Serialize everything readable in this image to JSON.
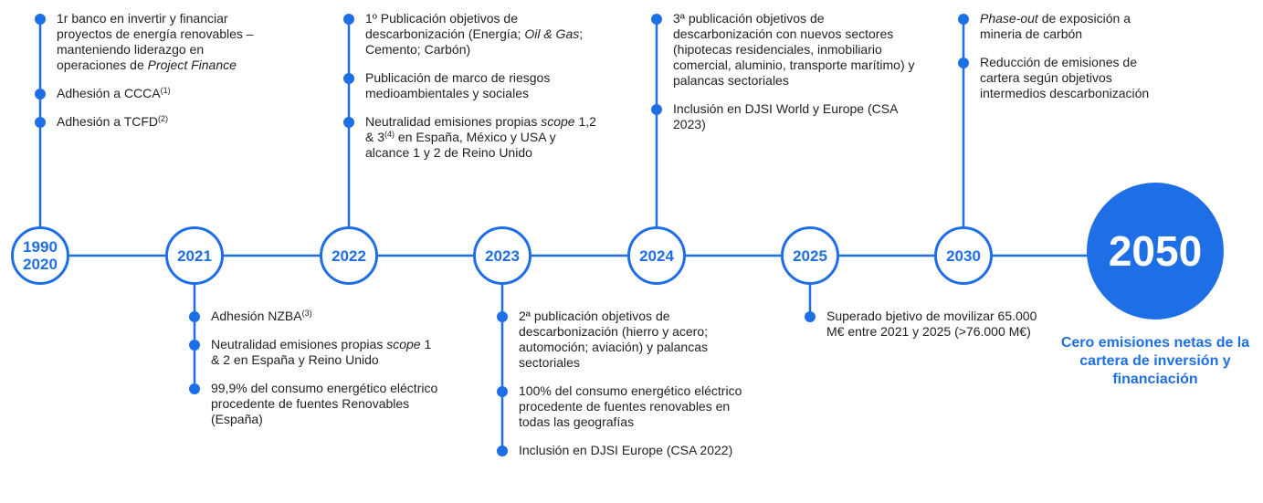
{
  "milestones": [
    {
      "label": "1990\n2020",
      "position": "above",
      "items": [
        [
          {
            "text": "1r banco en invertir y financiar proyectos de energía renovables – manteniendo liderazgo en operaciones de "
          },
          {
            "text": "Project Finance",
            "italic": true
          }
        ],
        [
          {
            "text": "Adhesión a CCCA"
          },
          {
            "text": "(1)",
            "sup": true
          }
        ],
        [
          {
            "text": "Adhesión a TCFD"
          },
          {
            "text": "(2)",
            "sup": true
          }
        ]
      ]
    },
    {
      "label": "2021",
      "position": "below",
      "items": [
        [
          {
            "text": "Adhesión NZBA"
          },
          {
            "text": "(3)",
            "sup": true
          }
        ],
        [
          {
            "text": "Neutralidad emisiones propias "
          },
          {
            "text": "scope",
            "italic": true
          },
          {
            "text": " 1 & 2 en España y Reino Unido"
          }
        ],
        [
          {
            "text": "99,9% del consumo energético eléctrico procedente de fuentes Renovables (España)"
          }
        ]
      ]
    },
    {
      "label": "2022",
      "position": "above",
      "items": [
        [
          {
            "text": "1º Publicación objetivos de descarbonización (Energía; "
          },
          {
            "text": "Oil & Gas",
            "italic": true
          },
          {
            "text": "; Cemento; Carbón)"
          }
        ],
        [
          {
            "text": "Publicación de marco de riesgos medioambientales y sociales"
          }
        ],
        [
          {
            "text": "Neutralidad emisiones propias "
          },
          {
            "text": "scope",
            "italic": true
          },
          {
            "text": " 1,2 & 3"
          },
          {
            "text": "(4)",
            "sup": true
          },
          {
            "text": " en España, México y USA y alcance 1 y 2 de Reino Unido"
          }
        ]
      ]
    },
    {
      "label": "2023",
      "position": "below",
      "items": [
        [
          {
            "text": "2ª publicación objetivos de descarbonización (hierro y acero; automoción; aviación) y palancas sectoriales"
          }
        ],
        [
          {
            "text": "100% del consumo energético eléctrico procedente de fuentes renovables en todas las geografías"
          }
        ],
        [
          {
            "text": "Inclusión en DJSI Europe (CSA 2022)"
          }
        ]
      ]
    },
    {
      "label": "2024",
      "position": "above",
      "items": [
        [
          {
            "text": "3ª publicación objetivos de descarbonización con nuevos sectores (hipotecas residenciales, inmobiliario comercial, aluminio, transporte marítimo) y palancas sectoriales"
          }
        ],
        [
          {
            "text": "Inclusión en DJSI World y Europe (CSA 2023)"
          }
        ]
      ]
    },
    {
      "label": "2025",
      "position": "below",
      "items": [
        [
          {
            "text": "Superado bjetivo de movilizar 65.000 M€ entre 2021 y 2025 (>76.000 M€)"
          }
        ]
      ]
    },
    {
      "label": "2030",
      "position": "above",
      "items": [
        [
          {
            "text": "Phase-out",
            "italic": true
          },
          {
            "text": " de exposición a mineria de carbón"
          }
        ],
        [
          {
            "text": "Reducción de emisiones de cartera según objetivos intermedios descarbonización"
          }
        ]
      ]
    }
  ],
  "final": {
    "label": "2050",
    "caption": "Cero emisiones netas de la cartera de inversión y financiación"
  }
}
